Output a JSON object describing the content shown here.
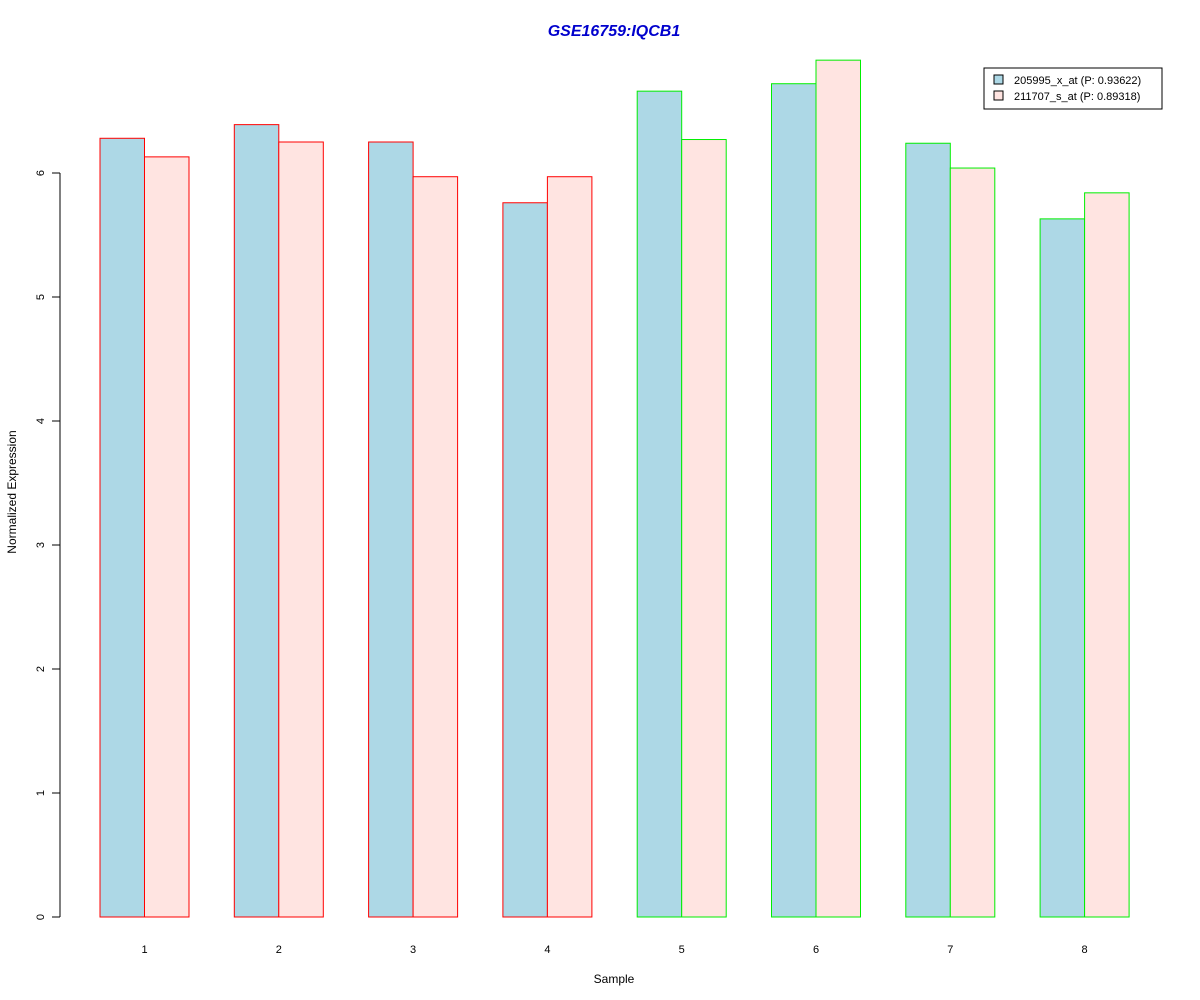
{
  "chart_data": {
    "type": "bar",
    "title": "GSE16759:IQCB1",
    "xlabel": "Sample",
    "ylabel": "Normalized Expression",
    "categories": [
      "1",
      "2",
      "3",
      "4",
      "5",
      "6",
      "7",
      "8"
    ],
    "ylim": [
      0,
      7
    ],
    "yticks": [
      0,
      1,
      2,
      3,
      4,
      5,
      6
    ],
    "grid": false,
    "legend_position": "top-right",
    "series": [
      {
        "name": "205995_x_at (P: 0.93622)",
        "fill": "#add8e6",
        "values": [
          6.28,
          6.39,
          6.25,
          5.76,
          6.66,
          6.72,
          6.24,
          5.63
        ]
      },
      {
        "name": "211707_s_at (P: 0.89318)",
        "fill": "#ffe4e1",
        "values": [
          6.13,
          6.25,
          5.97,
          5.97,
          6.27,
          6.91,
          6.04,
          5.84
        ]
      }
    ],
    "group_border_colors": [
      "#ff0000",
      "#ff0000",
      "#ff0000",
      "#ff0000",
      "#00ee00",
      "#00ee00",
      "#00ee00",
      "#00ee00"
    ],
    "title_color": "#0000cd"
  }
}
